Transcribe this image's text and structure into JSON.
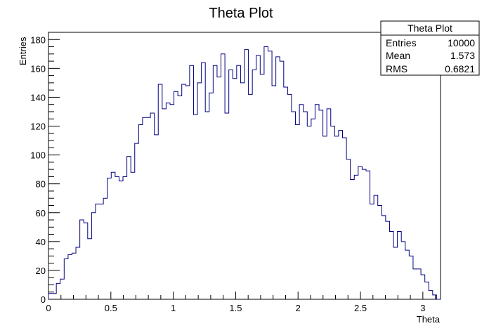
{
  "chart_data": {
    "type": "histogram",
    "title": "Theta Plot",
    "xlabel": "Theta",
    "ylabel": "Entries",
    "xlim": [
      0,
      3.1416
    ],
    "ylim": [
      0,
      185
    ],
    "x_ticks": [
      0,
      0.5,
      1,
      1.5,
      2,
      2.5,
      3
    ],
    "x_tick_labels": [
      "0",
      "0.5",
      "1",
      "1.5",
      "2",
      "2.5",
      "3"
    ],
    "y_ticks": [
      0,
      20,
      40,
      60,
      80,
      100,
      120,
      140,
      160,
      180
    ],
    "y_tick_labels": [
      "0",
      "20",
      "40",
      "60",
      "80",
      "100",
      "120",
      "140",
      "160",
      "180"
    ],
    "line_color": "#000080",
    "bins": 100,
    "values": [
      4,
      4,
      11,
      14,
      28,
      31,
      32,
      36,
      55,
      53,
      42,
      60,
      66,
      66,
      70,
      84,
      88,
      85,
      82,
      85,
      99,
      88,
      108,
      121,
      126,
      126,
      129,
      114,
      149,
      132,
      136,
      135,
      144,
      141,
      149,
      148,
      162,
      128,
      150,
      164,
      130,
      143,
      162,
      154,
      170,
      129,
      159,
      153,
      162,
      150,
      173,
      142,
      159,
      169,
      156,
      175,
      172,
      148,
      168,
      165,
      147,
      142,
      130,
      121,
      135,
      130,
      120,
      125,
      135,
      131,
      113,
      132,
      120,
      113,
      117,
      112,
      97,
      83,
      86,
      92,
      90,
      89,
      66,
      72,
      65,
      58,
      54,
      47,
      36,
      47,
      40,
      34,
      30,
      21,
      21,
      17,
      12,
      6,
      3,
      0
    ],
    "stats": {
      "title": "Theta Plot",
      "rows": [
        {
          "label": "Entries",
          "value": "10000"
        },
        {
          "label": "Mean",
          "value": "1.573"
        },
        {
          "label": "RMS",
          "value": "0.6821"
        }
      ]
    }
  }
}
